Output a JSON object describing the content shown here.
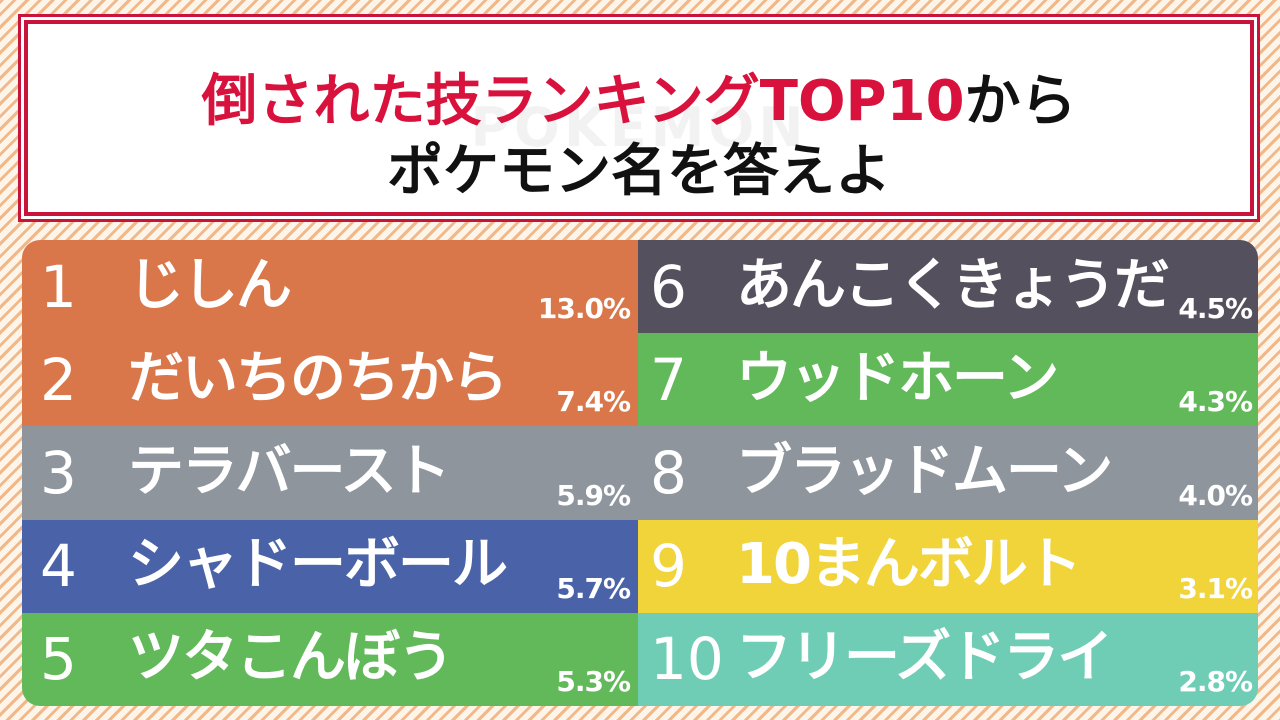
{
  "title": {
    "line1_red": "倒された技ランキングTOP10",
    "line1_black": "から",
    "line2": "ポケモン名を答えよ",
    "watermark": "POKEMON"
  },
  "ranking": [
    {
      "rank": "1",
      "move": "じしん",
      "percent": "13.0%",
      "color": "#d9774a"
    },
    {
      "rank": "2",
      "move": "だいちのちから",
      "percent": "7.4%",
      "color": "#d9774a"
    },
    {
      "rank": "3",
      "move": "テラバースト",
      "percent": "5.9%",
      "color": "#8e959c"
    },
    {
      "rank": "4",
      "move": "シャドーボール",
      "percent": "5.7%",
      "color": "#4a63a8"
    },
    {
      "rank": "5",
      "move": "ツタこんぼう",
      "percent": "5.3%",
      "color": "#62b95a"
    },
    {
      "rank": "6",
      "move": "あんこくきょうだ",
      "percent": "4.5%",
      "color": "#55505e"
    },
    {
      "rank": "7",
      "move": "ウッドホーン",
      "percent": "4.3%",
      "color": "#62b95a"
    },
    {
      "rank": "8",
      "move": "ブラッドムーン",
      "percent": "4.0%",
      "color": "#8e959c"
    },
    {
      "rank": "9",
      "move": "10まんボルト",
      "percent": "3.1%",
      "color": "#f1d33a"
    },
    {
      "rank": "10",
      "move": "フリーズドライ",
      "percent": "2.8%",
      "color": "#6fcdb6"
    }
  ]
}
